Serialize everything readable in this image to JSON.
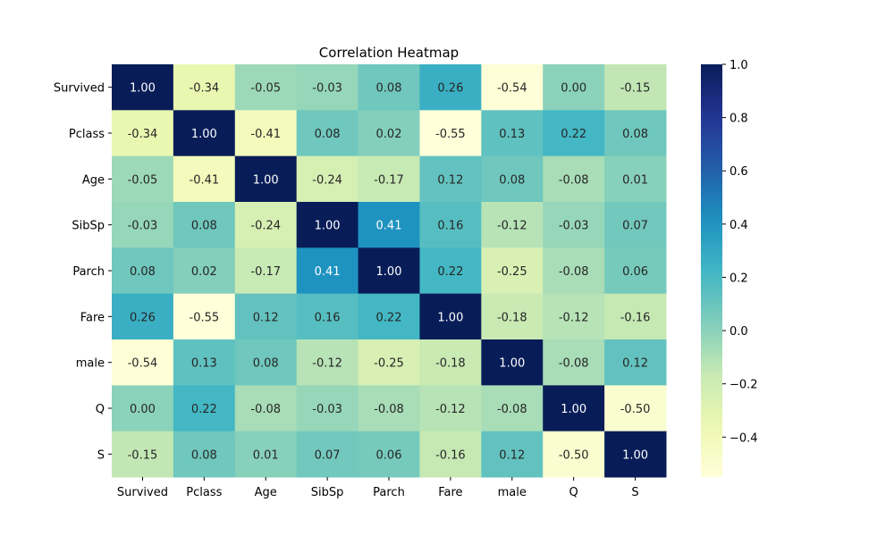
{
  "chart_data": {
    "type": "heatmap",
    "title": "Correlation Heatmap",
    "xlabel": "",
    "ylabel": "",
    "x_categories": [
      "Survived",
      "Pclass",
      "Age",
      "SibSp",
      "Parch",
      "Fare",
      "male",
      "Q",
      "S"
    ],
    "y_categories": [
      "Survived",
      "Pclass",
      "Age",
      "SibSp",
      "Parch",
      "Fare",
      "male",
      "Q",
      "S"
    ],
    "values": [
      [
        1.0,
        -0.34,
        -0.05,
        -0.03,
        0.08,
        0.26,
        -0.54,
        0.0,
        -0.15
      ],
      [
        -0.34,
        1.0,
        -0.41,
        0.08,
        0.02,
        -0.55,
        0.13,
        0.22,
        0.08
      ],
      [
        -0.05,
        -0.41,
        1.0,
        -0.24,
        -0.17,
        0.12,
        0.08,
        -0.08,
        0.01
      ],
      [
        -0.03,
        0.08,
        -0.24,
        1.0,
        0.41,
        0.16,
        -0.12,
        -0.03,
        0.07
      ],
      [
        0.08,
        0.02,
        -0.17,
        0.41,
        1.0,
        0.22,
        -0.25,
        -0.08,
        0.06
      ],
      [
        0.26,
        -0.55,
        0.12,
        0.16,
        0.22,
        1.0,
        -0.18,
        -0.12,
        -0.16
      ],
      [
        -0.54,
        0.13,
        0.08,
        -0.12,
        -0.25,
        -0.18,
        1.0,
        -0.08,
        0.12
      ],
      [
        0.0,
        0.22,
        -0.08,
        -0.03,
        -0.08,
        -0.12,
        -0.08,
        1.0,
        -0.5
      ],
      [
        -0.15,
        0.08,
        0.01,
        0.07,
        0.06,
        -0.16,
        0.12,
        -0.5,
        1.0
      ]
    ],
    "value_format": "0.00",
    "colormap": "YlGnBu",
    "color_range": [
      -0.55,
      1.0
    ],
    "colorbar": {
      "ticks": [
        1.0,
        0.8,
        0.6,
        0.4,
        0.2,
        0.0,
        -0.2,
        -0.4
      ],
      "tick_labels": [
        "1.0",
        "0.8",
        "0.6",
        "0.4",
        "0.2",
        "0.0",
        "−0.2",
        "−0.4"
      ],
      "placement": "right"
    },
    "grid": false
  }
}
